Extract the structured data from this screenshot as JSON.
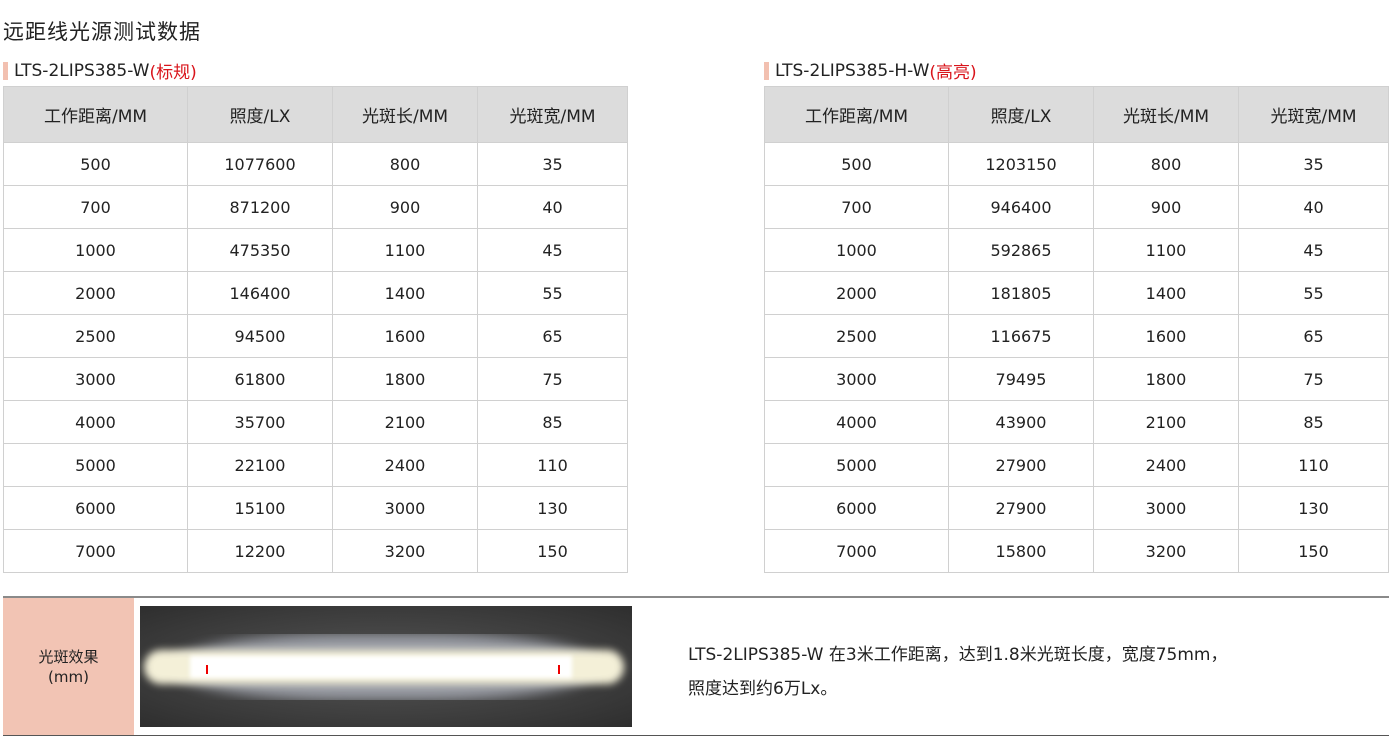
{
  "title": "远距线光源测试数据",
  "headers": [
    "工作距离/MM",
    "照度/LX",
    "光斑长/MM",
    "光斑宽/MM"
  ],
  "tables": [
    {
      "model": "LTS-2LIPS385-W",
      "tag": "(标规)",
      "rows": [
        [
          "500",
          "1077600",
          "800",
          "35"
        ],
        [
          "700",
          "871200",
          "900",
          "40"
        ],
        [
          "1000",
          "475350",
          "1100",
          "45"
        ],
        [
          "2000",
          "146400",
          "1400",
          "55"
        ],
        [
          "2500",
          "94500",
          "1600",
          "65"
        ],
        [
          "3000",
          "61800",
          "1800",
          "75"
        ],
        [
          "4000",
          "35700",
          "2100",
          "85"
        ],
        [
          "5000",
          "22100",
          "2400",
          "110"
        ],
        [
          "6000",
          "15100",
          "3000",
          "130"
        ],
        [
          "7000",
          "12200",
          "3200",
          "150"
        ]
      ]
    },
    {
      "model": "LTS-2LIPS385-H-W",
      "tag": "(高亮)",
      "rows": [
        [
          "500",
          "1203150",
          "800",
          "35"
        ],
        [
          "700",
          "946400",
          "900",
          "40"
        ],
        [
          "1000",
          "592865",
          "1100",
          "45"
        ],
        [
          "2000",
          "181805",
          "1400",
          "55"
        ],
        [
          "2500",
          "116675",
          "1600",
          "65"
        ],
        [
          "3000",
          "79495",
          "1800",
          "75"
        ],
        [
          "4000",
          "43900",
          "2100",
          "85"
        ],
        [
          "5000",
          "27900",
          "2400",
          "110"
        ],
        [
          "6000",
          "27900",
          "3000",
          "130"
        ],
        [
          "7000",
          "15800",
          "3200",
          "150"
        ]
      ]
    }
  ],
  "effect": {
    "label1": "光斑效果",
    "label2": "(mm)",
    "line1": "LTS-2LIPS385-W 在3米工作距离，达到1.8米光斑长度，宽度75mm，",
    "line2": "照度达到约6万Lx。"
  },
  "colors": {
    "accent_red": "#d9141b",
    "pink": "#f2c4b4",
    "header_bg": "#dcdcdc"
  }
}
